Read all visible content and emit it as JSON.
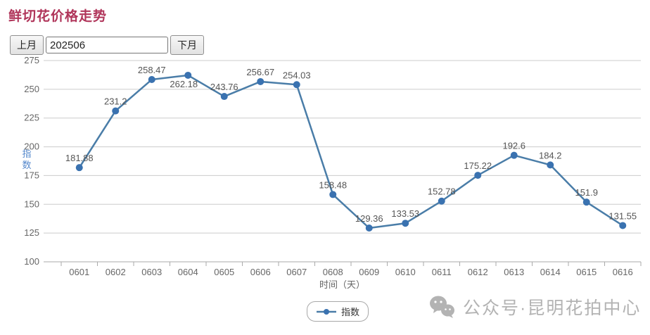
{
  "page": {
    "title": "鲜切花价格走势"
  },
  "controls": {
    "prev_label": "上月",
    "month_value": "202506",
    "next_label": "下月"
  },
  "chart_data": {
    "type": "line",
    "categories": [
      "0601",
      "0602",
      "0603",
      "0604",
      "0605",
      "0606",
      "0607",
      "0608",
      "0609",
      "0610",
      "0611",
      "0612",
      "0613",
      "0614",
      "0615",
      "0616"
    ],
    "series": [
      {
        "name": "指数",
        "values": [
          181.88,
          231.2,
          258.47,
          262.18,
          243.76,
          256.67,
          254.03,
          158.48,
          129.36,
          133.53,
          152.78,
          175.22,
          192.6,
          184.2,
          151.9,
          131.55
        ]
      }
    ],
    "xlabel": "时间（天）",
    "ylabel": "指数",
    "ylim": [
      100,
      275
    ],
    "ytick_step": 25,
    "grid": true,
    "legend_position": "bottom",
    "label_overrides": {
      "3": "below"
    },
    "colors": {
      "line": "#4a7da8",
      "marker": "#3a72b0",
      "grid": "#cccccc",
      "axis": "#aaaaaa",
      "tick_text": "#666666",
      "data_label": "#555555",
      "ylabel_color": "#5588cc",
      "title": "#b0355a"
    }
  },
  "legend": {
    "label": "指数"
  },
  "footer": {
    "wechat_icon": "wechat-icon",
    "text": "公众号·昆明花拍中心"
  }
}
